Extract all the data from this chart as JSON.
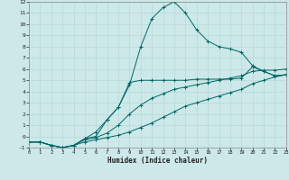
{
  "xlabel": "Humidex (Indice chaleur)",
  "xlim": [
    0,
    23
  ],
  "ylim": [
    -1,
    12
  ],
  "xticks": [
    0,
    1,
    2,
    3,
    4,
    5,
    6,
    7,
    8,
    9,
    10,
    11,
    12,
    13,
    14,
    15,
    16,
    17,
    18,
    19,
    20,
    21,
    22,
    23
  ],
  "yticks": [
    -1,
    0,
    1,
    2,
    3,
    4,
    5,
    6,
    7,
    8,
    9,
    10,
    11,
    12
  ],
  "bg_color": "#cce8e8",
  "grid_color": "#b8d8d8",
  "line_color": "#006868",
  "curve_peak_x": [
    0,
    1,
    2,
    3,
    4,
    5,
    6,
    7,
    8,
    9,
    10,
    11,
    12,
    13,
    14,
    15,
    16,
    17,
    18,
    19,
    20,
    21,
    22,
    23
  ],
  "curve_peak_y": [
    -0.5,
    -0.5,
    -0.8,
    -1.0,
    -0.8,
    -0.2,
    0.4,
    1.5,
    2.6,
    4.6,
    8.0,
    10.5,
    11.5,
    12.0,
    11.0,
    9.5,
    8.5,
    8.0,
    7.8,
    7.5,
    6.3,
    5.8,
    5.4,
    5.5
  ],
  "curve_mid_x": [
    0,
    1,
    2,
    3,
    4,
    5,
    6,
    7,
    8,
    9,
    10,
    11,
    12,
    13,
    14,
    15,
    16,
    17,
    18,
    19,
    20,
    21,
    22,
    23
  ],
  "curve_mid_y": [
    -0.5,
    -0.5,
    -0.8,
    -1.0,
    -0.8,
    -0.2,
    0.0,
    1.5,
    2.6,
    4.8,
    5.0,
    5.0,
    5.0,
    5.0,
    5.0,
    5.1,
    5.1,
    5.1,
    5.1,
    5.2,
    6.2,
    5.8,
    5.4,
    5.5
  ],
  "curve_low1_x": [
    0,
    1,
    2,
    3,
    4,
    5,
    6,
    7,
    8,
    9,
    10,
    11,
    12,
    13,
    14,
    15,
    16,
    17,
    18,
    19,
    20,
    21,
    22,
    23
  ],
  "curve_low1_y": [
    -0.5,
    -0.5,
    -0.8,
    -1.0,
    -0.8,
    -0.3,
    -0.1,
    0.3,
    1.0,
    2.0,
    2.8,
    3.4,
    3.8,
    4.2,
    4.4,
    4.6,
    4.8,
    5.0,
    5.2,
    5.4,
    5.8,
    5.9,
    5.9,
    6.0
  ],
  "curve_low2_x": [
    0,
    1,
    2,
    3,
    4,
    5,
    6,
    7,
    8,
    9,
    10,
    11,
    12,
    13,
    14,
    15,
    16,
    17,
    18,
    19,
    20,
    21,
    22,
    23
  ],
  "curve_low2_y": [
    -0.5,
    -0.5,
    -0.8,
    -1.0,
    -0.8,
    -0.5,
    -0.3,
    -0.1,
    0.1,
    0.4,
    0.8,
    1.2,
    1.7,
    2.2,
    2.7,
    3.0,
    3.3,
    3.6,
    3.9,
    4.2,
    4.7,
    5.0,
    5.3,
    5.5
  ]
}
